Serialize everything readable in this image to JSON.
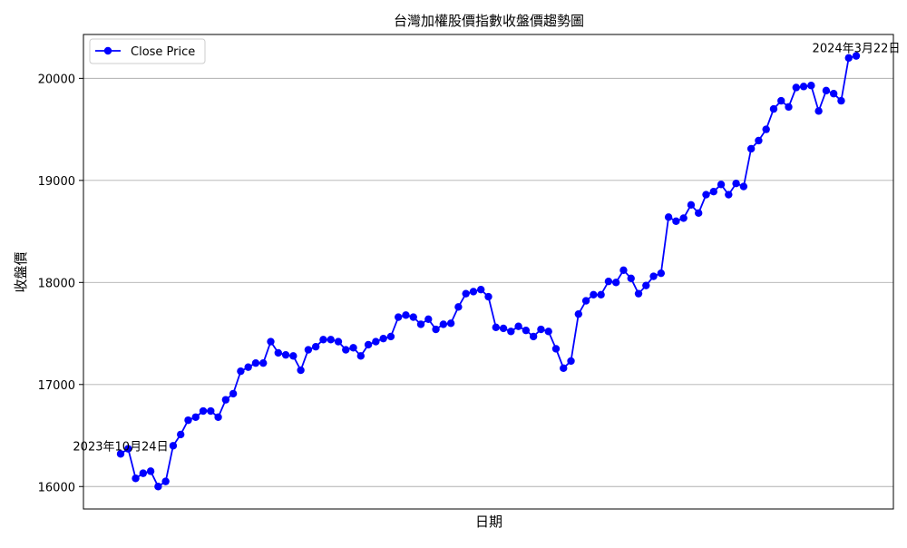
{
  "chart_data": {
    "type": "line",
    "title": "台灣加權股價指數收盤價趨勢圖",
    "xlabel": "日期",
    "ylabel": "收盤價",
    "ylim": [
      15780,
      20430
    ],
    "yticks": [
      16000,
      17000,
      18000,
      19000,
      20000
    ],
    "grid": "y-only",
    "legend_position": "top-left",
    "color": "#0000ff",
    "series": [
      {
        "name": "Close Price",
        "values": [
          16320,
          16370,
          16080,
          16130,
          16150,
          16000,
          16050,
          16400,
          16510,
          16650,
          16680,
          16740,
          16740,
          16680,
          16850,
          16910,
          17130,
          17170,
          17210,
          17210,
          17420,
          17310,
          17290,
          17280,
          17140,
          17340,
          17370,
          17440,
          17440,
          17420,
          17340,
          17360,
          17280,
          17390,
          17420,
          17450,
          17470,
          17660,
          17680,
          17660,
          17590,
          17640,
          17540,
          17590,
          17600,
          17760,
          17890,
          17910,
          17930,
          17860,
          17560,
          17550,
          17520,
          17570,
          17530,
          17470,
          17540,
          17520,
          17350,
          17160,
          17230,
          17690,
          17820,
          17880,
          17880,
          18010,
          18000,
          18120,
          18040,
          17890,
          17970,
          18060,
          18090,
          18640,
          18600,
          18630,
          18760,
          18680,
          18860,
          18890,
          18960,
          18860,
          18970,
          18940,
          19310,
          19390,
          19500,
          19700,
          19780,
          19720,
          19910,
          19920,
          19930,
          19680,
          19880,
          19850,
          19780,
          20200,
          20220
        ]
      }
    ],
    "annotations": [
      {
        "text": "2023年10月24日",
        "point_index": 0
      },
      {
        "text": "2024年3月22日",
        "point_index": 98
      }
    ]
  }
}
